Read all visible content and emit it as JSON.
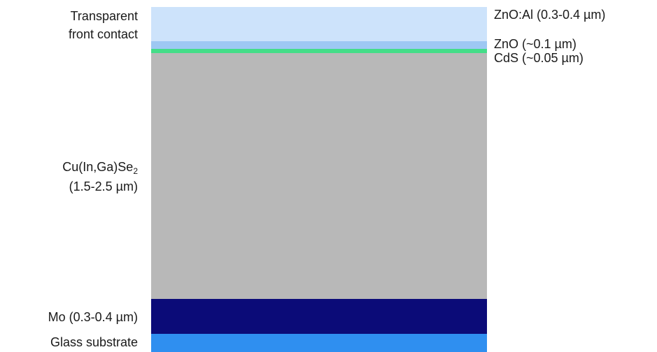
{
  "diagram": {
    "layers": [
      {
        "id": "zno-al",
        "color": "#cde3fb"
      },
      {
        "id": "zno",
        "color": "#9ec8f3"
      },
      {
        "id": "cds",
        "color": "#44dd88"
      },
      {
        "id": "cigs",
        "color": "#b8b8b8"
      },
      {
        "id": "mo",
        "color": "#0b0b78"
      },
      {
        "id": "glass",
        "color": "#2f8ff0"
      }
    ],
    "left_labels": {
      "front_contact_line1": "Transparent",
      "front_contact_line2": "front contact",
      "absorber_formula": "Cu(In,Ga)Se",
      "absorber_subscript": "2",
      "absorber_thickness": "(1.5-2.5 µm)",
      "mo": "Mo (0.3-0.4 µm)",
      "glass": "Glass substrate"
    },
    "right_labels": {
      "zno_al": "ZnO:Al (0.3-0.4 µm)",
      "zno": "ZnO (~0.1 µm)",
      "cds": "CdS (~0.05 µm)"
    }
  }
}
